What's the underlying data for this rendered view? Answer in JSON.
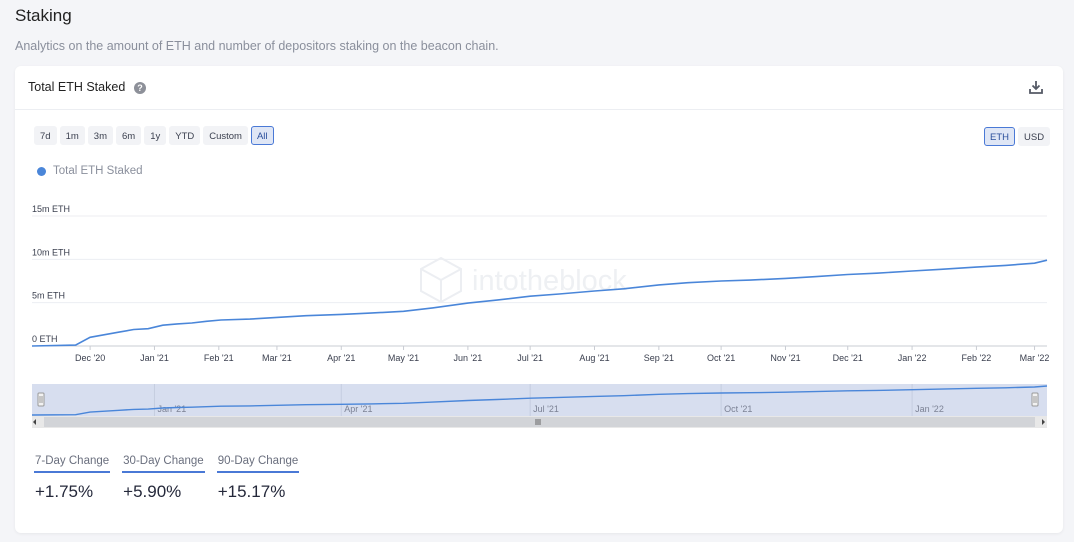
{
  "page": {
    "title": "Staking",
    "subtitle": "Analytics on the amount of ETH and number of depositors staking on the beacon chain."
  },
  "card": {
    "title": "Total ETH Staked",
    "help_icon": "question-circle-icon",
    "download_icon": "download-icon"
  },
  "range_buttons": [
    "7d",
    "1m",
    "3m",
    "6m",
    "1y",
    "YTD",
    "Custom",
    "All"
  ],
  "range_active": "All",
  "unit_buttons": [
    "ETH",
    "USD"
  ],
  "unit_active": "ETH",
  "watermark": "intotheblock",
  "chart_data": {
    "type": "line",
    "title": "Total ETH Staked",
    "legend": [
      "Total ETH Staked"
    ],
    "series": [
      {
        "name": "Total ETH Staked",
        "color": "#4a86d9",
        "x": [
          "2020-11-03",
          "2020-11-24",
          "2020-12-01",
          "2020-12-08",
          "2020-12-15",
          "2020-12-22",
          "2020-12-29",
          "2021-01-05",
          "2021-01-12",
          "2021-01-19",
          "2021-01-26",
          "2021-02-02",
          "2021-02-16",
          "2021-03-01",
          "2021-03-15",
          "2021-04-01",
          "2021-04-15",
          "2021-05-01",
          "2021-05-15",
          "2021-06-01",
          "2021-06-15",
          "2021-07-01",
          "2021-07-15",
          "2021-08-01",
          "2021-08-15",
          "2021-09-01",
          "2021-09-15",
          "2021-10-01",
          "2021-10-15",
          "2021-11-01",
          "2021-11-15",
          "2021-12-01",
          "2021-12-15",
          "2022-01-01",
          "2022-01-15",
          "2022-02-01",
          "2022-02-15",
          "2022-03-01",
          "2022-03-07"
        ],
        "values": [
          0.0,
          0.1,
          1.0,
          1.3,
          1.6,
          1.9,
          2.0,
          2.4,
          2.55,
          2.65,
          2.85,
          3.0,
          3.1,
          3.3,
          3.5,
          3.65,
          3.8,
          4.0,
          4.4,
          4.95,
          5.3,
          5.75,
          6.0,
          6.35,
          6.6,
          7.05,
          7.3,
          7.5,
          7.6,
          7.8,
          8.0,
          8.25,
          8.4,
          8.65,
          8.85,
          9.1,
          9.3,
          9.55,
          9.9
        ]
      }
    ],
    "y_tick_labels": [
      "0 ETH",
      "5m ETH",
      "10m ETH",
      "15m ETH"
    ],
    "y_tick_values": [
      0,
      5,
      10,
      15
    ],
    "ylim": [
      0,
      15
    ],
    "y_unit": "million ETH",
    "x_tick_labels": [
      "Dec '20",
      "Jan '21",
      "Feb '21",
      "Mar '21",
      "Apr '21",
      "May '21",
      "Jun '21",
      "Jul '21",
      "Aug '21",
      "Sep '21",
      "Oct '21",
      "Nov '21",
      "Dec '21",
      "Jan '22",
      "Feb '22",
      "Mar '22"
    ],
    "x_tick_dates": [
      "2020-12-01",
      "2021-01-01",
      "2021-02-01",
      "2021-03-01",
      "2021-04-01",
      "2021-05-01",
      "2021-06-01",
      "2021-07-01",
      "2021-08-01",
      "2021-09-01",
      "2021-10-01",
      "2021-11-01",
      "2021-12-01",
      "2022-01-01",
      "2022-02-01",
      "2022-03-01"
    ],
    "xlim": [
      "2020-11-03",
      "2022-03-07"
    ],
    "navigator_tick_labels": [
      "Jan '21",
      "Apr '21",
      "Jul '21",
      "Oct '21",
      "Jan '22"
    ],
    "navigator_tick_dates": [
      "2021-01-01",
      "2021-04-01",
      "2021-07-01",
      "2021-10-01",
      "2022-01-01"
    ]
  },
  "stats": [
    {
      "label": "7-Day Change",
      "value": "+1.75%"
    },
    {
      "label": "30-Day Change",
      "value": "+5.90%"
    },
    {
      "label": "90-Day Change",
      "value": "+15.17%"
    }
  ]
}
